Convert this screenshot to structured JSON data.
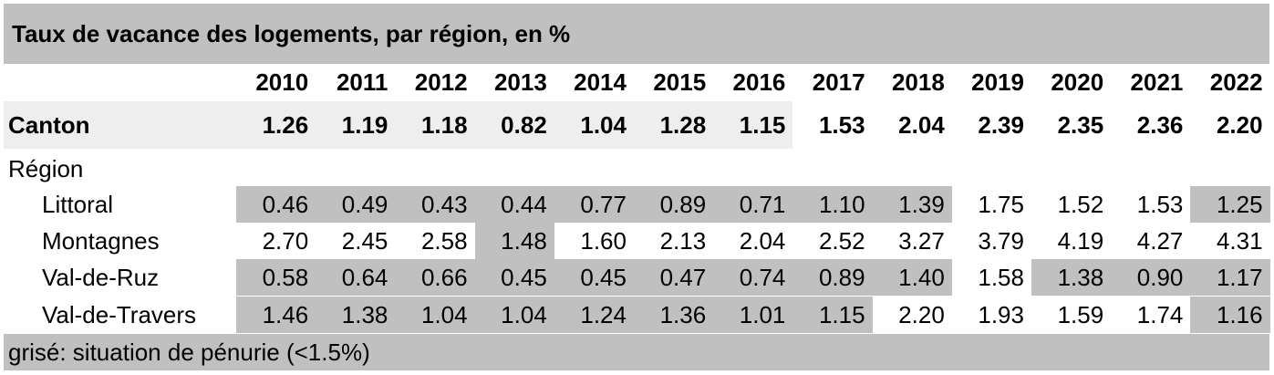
{
  "chart_data": {
    "type": "table",
    "title": "Taux de vacance des logements, par région, en %",
    "columns": [
      "2010",
      "2011",
      "2012",
      "2013",
      "2014",
      "2015",
      "2016",
      "2017",
      "2018",
      "2019",
      "2020",
      "2021",
      "2022"
    ],
    "canton": {
      "label": "Canton",
      "values": [
        "1.26",
        "1.19",
        "1.18",
        "0.82",
        "1.04",
        "1.28",
        "1.15",
        "1.53",
        "2.04",
        "2.39",
        "2.35",
        "2.36",
        "2.20"
      ],
      "shaded": [
        true,
        true,
        true,
        true,
        true,
        true,
        true,
        false,
        false,
        false,
        false,
        false,
        false
      ]
    },
    "region_header": "Région",
    "rows": [
      {
        "label": "Littoral",
        "values": [
          "0.46",
          "0.49",
          "0.43",
          "0.44",
          "0.77",
          "0.89",
          "0.71",
          "1.10",
          "1.39",
          "1.75",
          "1.52",
          "1.53",
          "1.25"
        ],
        "shaded": [
          true,
          true,
          true,
          true,
          true,
          true,
          true,
          true,
          true,
          false,
          false,
          false,
          true
        ]
      },
      {
        "label": "Montagnes",
        "values": [
          "2.70",
          "2.45",
          "2.58",
          "1.48",
          "1.60",
          "2.13",
          "2.04",
          "2.52",
          "3.27",
          "3.79",
          "4.19",
          "4.27",
          "4.31"
        ],
        "shaded": [
          false,
          false,
          false,
          true,
          false,
          false,
          false,
          false,
          false,
          false,
          false,
          false,
          false
        ]
      },
      {
        "label": "Val-de-Ruz",
        "values": [
          "0.58",
          "0.64",
          "0.66",
          "0.45",
          "0.45",
          "0.47",
          "0.74",
          "0.89",
          "1.40",
          "1.58",
          "1.38",
          "0.90",
          "1.17"
        ],
        "shaded": [
          true,
          true,
          true,
          true,
          true,
          true,
          true,
          true,
          true,
          false,
          true,
          true,
          true
        ]
      },
      {
        "label": "Val-de-Travers",
        "values": [
          "1.46",
          "1.38",
          "1.04",
          "1.04",
          "1.24",
          "1.36",
          "1.01",
          "1.15",
          "2.20",
          "1.93",
          "1.59",
          "1.74",
          "1.16"
        ],
        "shaded": [
          true,
          true,
          true,
          true,
          true,
          true,
          true,
          true,
          false,
          false,
          false,
          false,
          true
        ]
      }
    ],
    "footnote": "grisé: situation de pénurie (<1.5%)"
  },
  "colors": {
    "shade": "#c0c0c0",
    "canton_shade": "#eeeeee",
    "text": "#000000",
    "background": "#ffffff"
  }
}
